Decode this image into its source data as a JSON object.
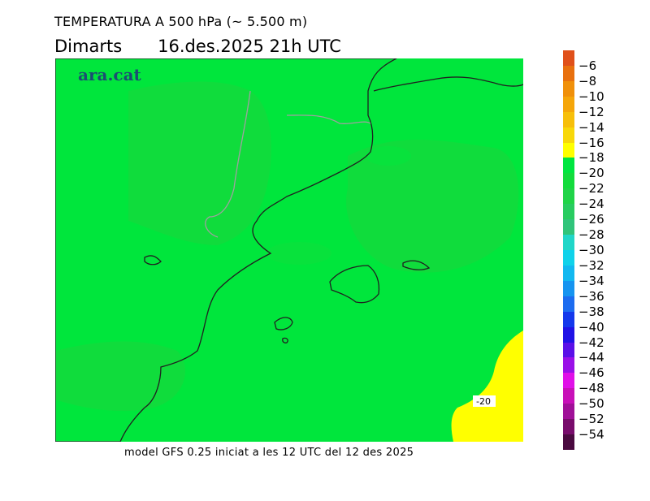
{
  "title": "TEMPERATURA A 500 hPa (~ 5.500 m)",
  "day_name": "Dimarts",
  "datetime": "16.des.2025 21h UTC",
  "logo": "ara.cat",
  "footer": "model GFS 0.25 iniciat a les 12 UTC del 12 des 2025",
  "contour_label": "-20",
  "legend": {
    "labels": [
      "-6",
      "-8",
      "-10",
      "-12",
      "-14",
      "-16",
      "-18",
      "-20",
      "-22",
      "-24",
      "-26",
      "-28",
      "-30",
      "-32",
      "-34",
      "-36",
      "-38",
      "-40",
      "-42",
      "-44",
      "-46",
      "-48",
      "-50",
      "-52",
      "-54"
    ],
    "colors": [
      "#e0501a",
      "#e8700e",
      "#f0900a",
      "#f5a60a",
      "#f7bf0a",
      "#f8d80a",
      "#ffff00",
      "#00e640",
      "#12dc3c",
      "#20d448",
      "#28cc60",
      "#30c47a",
      "#20d6c8",
      "#10d2ea",
      "#12b8f0",
      "#1694f0",
      "#1c6cf0",
      "#1438ec",
      "#2012e6",
      "#5a10e8",
      "#9a10e8",
      "#e010e8",
      "#c810b8",
      "#a01098",
      "#780c6c",
      "#4a0a40"
    ]
  },
  "map_colors": {
    "main": "#00e63c",
    "darker": "#10dc3c",
    "warm": "#ffff00",
    "coast": "#202020",
    "border": "#a0a0a0"
  }
}
